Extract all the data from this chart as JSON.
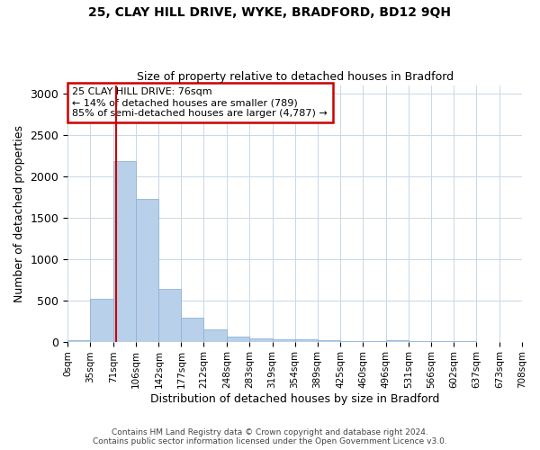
{
  "title1": "25, CLAY HILL DRIVE, WYKE, BRADFORD, BD12 9QH",
  "title2": "Size of property relative to detached houses in Bradford",
  "xlabel": "Distribution of detached houses by size in Bradford",
  "ylabel": "Number of detached properties",
  "bin_edges": [
    0,
    35,
    71,
    106,
    142,
    177,
    212,
    248,
    283,
    319,
    354,
    389,
    425,
    460,
    496,
    531,
    566,
    602,
    637,
    673,
    708
  ],
  "bar_heights": [
    20,
    520,
    2180,
    1720,
    635,
    285,
    148,
    65,
    38,
    30,
    25,
    18,
    10,
    8,
    20,
    3,
    2,
    2,
    1,
    1
  ],
  "bar_color": "#b8d0ea",
  "bar_edge_color": "#90b4d4",
  "ylim": [
    0,
    3100
  ],
  "yticks": [
    0,
    500,
    1000,
    1500,
    2000,
    2500,
    3000
  ],
  "property_size": 76,
  "property_line_color": "#cc0000",
  "annotation_text": "25 CLAY HILL DRIVE: 76sqm\n← 14% of detached houses are smaller (789)\n85% of semi-detached houses are larger (4,787) →",
  "annotation_box_color": "#ffffff",
  "annotation_box_edge_color": "#cc0000",
  "footer_line1": "Contains HM Land Registry data © Crown copyright and database right 2024.",
  "footer_line2": "Contains public sector information licensed under the Open Government Licence v3.0.",
  "background_color": "#ffffff",
  "grid_color": "#c8d8e8",
  "tick_labels": [
    "0sqm",
    "35sqm",
    "71sqm",
    "106sqm",
    "142sqm",
    "177sqm",
    "212sqm",
    "248sqm",
    "283sqm",
    "319sqm",
    "354sqm",
    "389sqm",
    "425sqm",
    "460sqm",
    "496sqm",
    "531sqm",
    "566sqm",
    "602sqm",
    "637sqm",
    "673sqm",
    "708sqm"
  ],
  "title1_fontsize": 10,
  "title2_fontsize": 9,
  "ylabel_fontsize": 9,
  "xlabel_fontsize": 9,
  "annotation_fontsize": 8,
  "footer_fontsize": 6.5
}
